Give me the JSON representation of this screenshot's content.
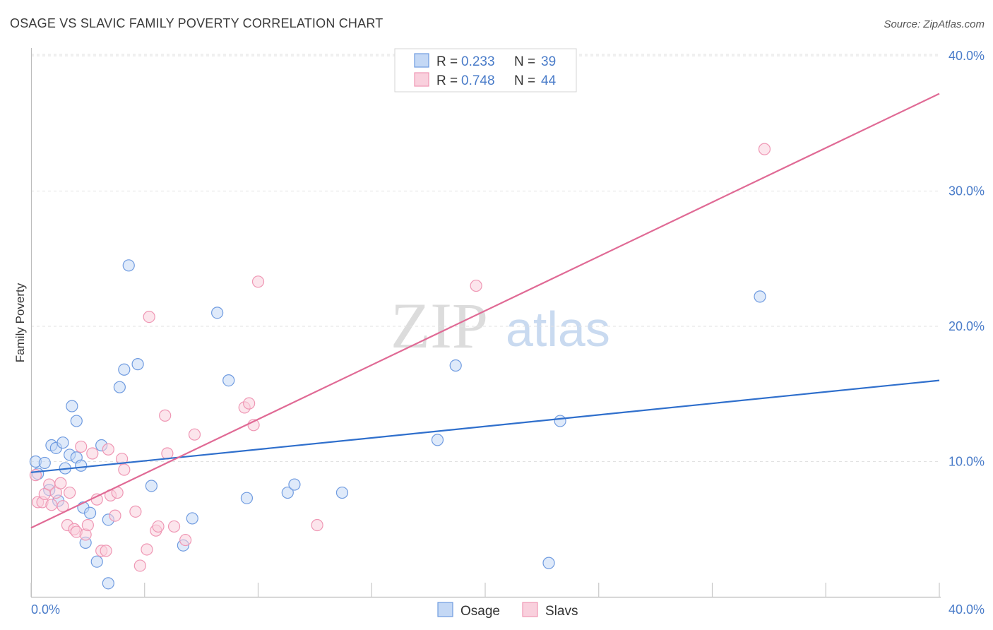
{
  "chart_data": {
    "type": "scatter",
    "title": "OSAGE VS SLAVIC FAMILY POVERTY CORRELATION CHART",
    "source": "Source: ZipAtlas.com",
    "ylabel": "Family Poverty",
    "xlim": [
      0,
      40
    ],
    "ylim": [
      0,
      40
    ],
    "x_ticks": [
      "0.0%",
      "40.0%"
    ],
    "y_ticks": [
      {
        "value": 10,
        "label": "10.0%"
      },
      {
        "value": 20,
        "label": "20.0%"
      },
      {
        "value": 30,
        "label": "30.0%"
      },
      {
        "value": 40,
        "label": "40.0%"
      }
    ],
    "watermark": {
      "zip": "ZIP",
      "atlas": "atlas"
    },
    "legend": {
      "r_label": "R =",
      "n_label": "N =",
      "entries": [
        {
          "series": "Osage",
          "r": "0.233",
          "n": "39"
        },
        {
          "series": "Slavs",
          "r": "0.748",
          "n": "44"
        }
      ]
    },
    "series": [
      {
        "name": "Osage",
        "color": "#6f9be0",
        "fill": "#c4d8f5",
        "line_color": "#2f6fcc",
        "trend": [
          [
            0,
            9.2
          ],
          [
            40,
            16.0
          ]
        ],
        "points": [
          [
            0.2,
            10.0
          ],
          [
            0.3,
            9.1
          ],
          [
            0.6,
            9.9
          ],
          [
            0.8,
            7.9
          ],
          [
            0.9,
            11.2
          ],
          [
            1.1,
            11.0
          ],
          [
            1.4,
            11.4
          ],
          [
            1.5,
            9.5
          ],
          [
            1.7,
            10.5
          ],
          [
            1.8,
            14.1
          ],
          [
            2.0,
            10.3
          ],
          [
            2.2,
            9.7
          ],
          [
            2.3,
            6.6
          ],
          [
            2.4,
            4.0
          ],
          [
            2.6,
            6.2
          ],
          [
            2.9,
            2.6
          ],
          [
            3.1,
            11.2
          ],
          [
            3.4,
            5.7
          ],
          [
            3.4,
            1.0
          ],
          [
            3.9,
            15.5
          ],
          [
            4.1,
            16.8
          ],
          [
            4.3,
            24.5
          ],
          [
            4.7,
            17.2
          ],
          [
            5.3,
            8.2
          ],
          [
            6.7,
            3.8
          ],
          [
            7.1,
            5.8
          ],
          [
            8.2,
            21.0
          ],
          [
            8.7,
            16.0
          ],
          [
            9.5,
            7.3
          ],
          [
            11.3,
            7.7
          ],
          [
            11.6,
            8.3
          ],
          [
            13.7,
            7.7
          ],
          [
            17.9,
            11.6
          ],
          [
            18.7,
            17.1
          ],
          [
            22.8,
            2.5
          ],
          [
            23.3,
            13.0
          ],
          [
            32.1,
            22.2
          ],
          [
            1.2,
            7.1
          ],
          [
            2.0,
            13.0
          ]
        ]
      },
      {
        "name": "Slavs",
        "color": "#ef97b4",
        "fill": "#f9d0dd",
        "line_color": "#e06a95",
        "trend": [
          [
            0,
            5.1
          ],
          [
            40,
            37.2
          ]
        ],
        "points": [
          [
            0.2,
            9.0
          ],
          [
            0.3,
            7.0
          ],
          [
            0.5,
            7.0
          ],
          [
            0.6,
            7.6
          ],
          [
            0.8,
            8.3
          ],
          [
            0.9,
            6.8
          ],
          [
            1.1,
            7.7
          ],
          [
            1.3,
            8.4
          ],
          [
            1.4,
            6.7
          ],
          [
            1.6,
            5.3
          ],
          [
            1.7,
            7.7
          ],
          [
            1.9,
            5.0
          ],
          [
            2.0,
            4.8
          ],
          [
            2.2,
            11.1
          ],
          [
            2.4,
            4.6
          ],
          [
            2.5,
            5.3
          ],
          [
            2.7,
            10.6
          ],
          [
            2.9,
            7.2
          ],
          [
            3.1,
            3.4
          ],
          [
            3.3,
            3.4
          ],
          [
            3.4,
            10.9
          ],
          [
            3.5,
            7.5
          ],
          [
            3.7,
            6.0
          ],
          [
            3.8,
            7.7
          ],
          [
            4.0,
            10.2
          ],
          [
            4.1,
            9.4
          ],
          [
            4.6,
            6.3
          ],
          [
            4.8,
            2.3
          ],
          [
            5.1,
            3.5
          ],
          [
            5.2,
            20.7
          ],
          [
            5.5,
            4.9
          ],
          [
            5.6,
            5.2
          ],
          [
            5.9,
            13.4
          ],
          [
            6.0,
            10.6
          ],
          [
            6.3,
            5.2
          ],
          [
            6.8,
            4.2
          ],
          [
            7.2,
            12.0
          ],
          [
            9.4,
            14.0
          ],
          [
            9.6,
            14.3
          ],
          [
            9.8,
            12.7
          ],
          [
            10.0,
            23.3
          ],
          [
            12.6,
            5.3
          ],
          [
            19.6,
            23.0
          ],
          [
            32.3,
            33.1
          ]
        ]
      }
    ]
  }
}
